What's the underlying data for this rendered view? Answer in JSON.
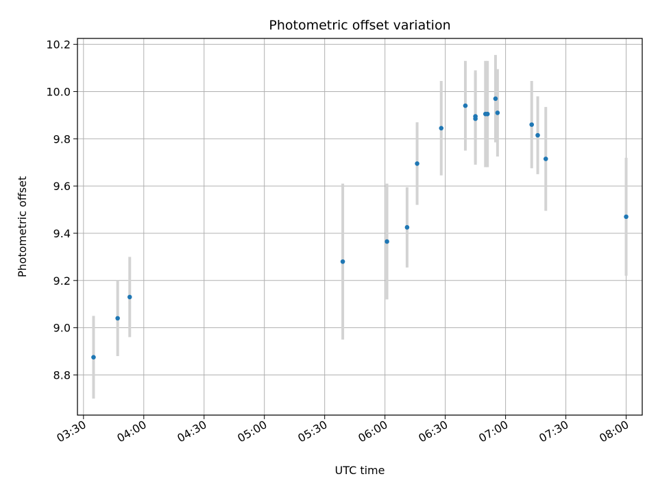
{
  "chart_data": {
    "type": "scatter",
    "title": "Photometric offset variation",
    "xlabel": "UTC time",
    "ylabel": "Photometric offset",
    "grid": true,
    "x_axis_type": "time",
    "xlim": [
      "03:27",
      "08:08"
    ],
    "ylim": [
      8.63,
      10.225
    ],
    "x_ticks": [
      "03:30",
      "04:00",
      "04:30",
      "05:00",
      "05:30",
      "06:00",
      "06:30",
      "07:00",
      "07:30",
      "08:00"
    ],
    "y_ticks": [
      8.8,
      9.0,
      9.2,
      9.4,
      9.6,
      9.8,
      10.0,
      10.2
    ],
    "y_tick_labels": [
      "8.8",
      "9.0",
      "9.2",
      "9.4",
      "9.6",
      "9.8",
      "10.0",
      "10.2"
    ],
    "marker_color": "#1f77b4",
    "errorbar_color": "#d3d3d3",
    "points": [
      {
        "x": "03:35",
        "y": 8.875,
        "err": 0.175
      },
      {
        "x": "03:47",
        "y": 9.04,
        "err": 0.16
      },
      {
        "x": "03:53",
        "y": 9.13,
        "err": 0.17
      },
      {
        "x": "05:39",
        "y": 9.28,
        "err": 0.33
      },
      {
        "x": "06:01",
        "y": 9.365,
        "err": 0.245
      },
      {
        "x": "06:11",
        "y": 9.425,
        "err": 0.17
      },
      {
        "x": "06:16",
        "y": 9.695,
        "err": 0.175
      },
      {
        "x": "06:28",
        "y": 9.845,
        "err": 0.2
      },
      {
        "x": "06:40",
        "y": 9.94,
        "err": 0.19
      },
      {
        "x": "06:45",
        "y": 9.895,
        "err": 0.195
      },
      {
        "x": "06:45",
        "y": 9.885,
        "err": 0.195
      },
      {
        "x": "06:50",
        "y": 9.905,
        "err": 0.225
      },
      {
        "x": "06:51",
        "y": 9.905,
        "err": 0.225
      },
      {
        "x": "06:55",
        "y": 9.97,
        "err": 0.185
      },
      {
        "x": "06:56",
        "y": 9.91,
        "err": 0.185
      },
      {
        "x": "07:13",
        "y": 9.86,
        "err": 0.185
      },
      {
        "x": "07:16",
        "y": 9.815,
        "err": 0.165
      },
      {
        "x": "07:20",
        "y": 9.715,
        "err": 0.22
      },
      {
        "x": "08:00",
        "y": 9.47,
        "err": 0.25
      }
    ]
  }
}
